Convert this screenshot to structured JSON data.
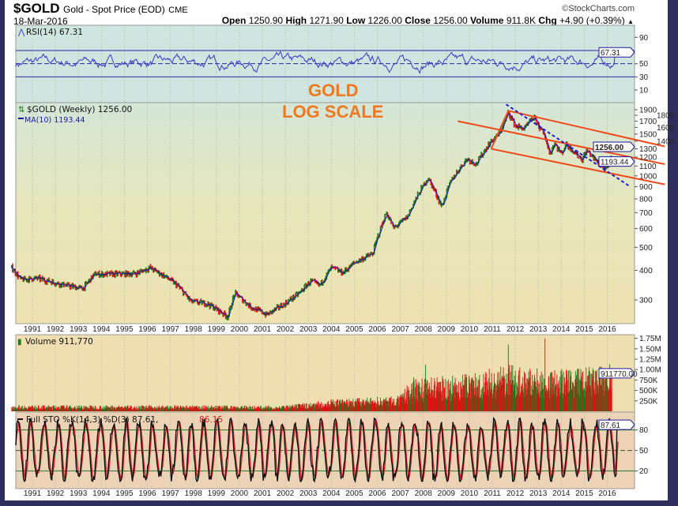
{
  "header": {
    "symbol": "$GOLD",
    "name": "Gold - Spot Price (EOD)",
    "exchange": "CME",
    "date": "18-Mar-2016",
    "watermark": "©StockCharts.com",
    "open_label": "Open",
    "open": "1250.90",
    "high_label": "High",
    "high": "1271.90",
    "low_label": "Low",
    "low": "1226.00",
    "close_label": "Close",
    "close": "1256.00",
    "volume_label": "Volume",
    "volume": "911.8K",
    "chg_label": "Chg",
    "chg": "+4.90 (+0.39%)",
    "chg_icon": "up-triangle-icon"
  },
  "annotation": {
    "line1": "GOLD",
    "line2": "LOG SCALE",
    "color": "#f07820"
  },
  "colors": {
    "up": "#1a7a1a",
    "down": "#e01010",
    "ma": "#1a1aa0",
    "trend": "#f04a1a",
    "dashed": "#2020d0",
    "rsi": "#3a3ac8",
    "sto_k": "#111111",
    "sto_d": "#d02020"
  },
  "chart_data": [
    {
      "type": "line",
      "title": "RSI(14) 67.31",
      "panel": "rsi",
      "ylim": [
        0,
        100
      ],
      "yticks": [
        "90",
        "50",
        "30",
        "10"
      ],
      "reference_lines": [
        70,
        50,
        30
      ],
      "last_value": 67.31,
      "last_value_label": "67.31"
    },
    {
      "type": "bar",
      "title": "$GOLD (Weekly) 1256.00",
      "ma_label": "MA(10) 1193.44",
      "panel": "price",
      "scale": "log",
      "ylim": [
        250,
        2000
      ],
      "yticks": [
        "1900",
        "1800",
        "1700",
        "1600",
        "1500",
        "1400",
        "1300",
        "1200",
        "1100",
        "1000",
        "900",
        "800",
        "700",
        "600",
        "500",
        "400",
        "300"
      ],
      "last_price_label": "1256.00",
      "ma_value_label": "1193.44",
      "xticks": [
        "1991",
        "1992",
        "1993",
        "1994",
        "1995",
        "1996",
        "1997",
        "1998",
        "1999",
        "2000",
        "2001",
        "2002",
        "2003",
        "2004",
        "2005",
        "2006",
        "2007",
        "2008",
        "2009",
        "2010",
        "2011",
        "2012",
        "2013",
        "2014",
        "2015",
        "2016"
      ],
      "price_keypoints": [
        [
          1990.1,
          410
        ],
        [
          1990.5,
          365
        ],
        [
          1991.2,
          370
        ],
        [
          1992.5,
          345
        ],
        [
          1993.2,
          335
        ],
        [
          1993.7,
          385
        ],
        [
          1994.5,
          385
        ],
        [
          1995.5,
          388
        ],
        [
          1996.1,
          410
        ],
        [
          1996.8,
          375
        ],
        [
          1997.3,
          345
        ],
        [
          1997.9,
          295
        ],
        [
          1998.6,
          290
        ],
        [
          1999.5,
          255
        ],
        [
          1999.8,
          320
        ],
        [
          2000.5,
          280
        ],
        [
          2001.2,
          260
        ],
        [
          2002.0,
          290
        ],
        [
          2002.6,
          320
        ],
        [
          2003.1,
          360
        ],
        [
          2003.5,
          345
        ],
        [
          2004.0,
          410
        ],
        [
          2004.5,
          390
        ],
        [
          2005.0,
          430
        ],
        [
          2005.8,
          470
        ],
        [
          2006.4,
          700
        ],
        [
          2006.7,
          600
        ],
        [
          2007.3,
          670
        ],
        [
          2008.2,
          980
        ],
        [
          2008.8,
          740
        ],
        [
          2009.2,
          950
        ],
        [
          2009.9,
          1180
        ],
        [
          2010.3,
          1120
        ],
        [
          2010.9,
          1380
        ],
        [
          2011.3,
          1500
        ],
        [
          2011.7,
          1850
        ],
        [
          2012.0,
          1620
        ],
        [
          2012.4,
          1580
        ],
        [
          2012.8,
          1760
        ],
        [
          2013.3,
          1450
        ],
        [
          2013.5,
          1230
        ],
        [
          2013.7,
          1380
        ],
        [
          2014.0,
          1230
        ],
        [
          2014.2,
          1360
        ],
        [
          2014.9,
          1170
        ],
        [
          2015.1,
          1280
        ],
        [
          2015.5,
          1160
        ],
        [
          2015.9,
          1060
        ],
        [
          2016.05,
          1100
        ],
        [
          2016.2,
          1256
        ]
      ],
      "trendlines": [
        {
          "name": "upper-channel",
          "from": [
            2011.7,
            1880
          ],
          "to": [
            2018.5,
            1330
          ]
        },
        {
          "name": "middle-channel",
          "from": [
            2009.5,
            1700
          ],
          "to": [
            2018.5,
            1120
          ]
        },
        {
          "name": "lower-channel",
          "from": [
            2010.95,
            1300
          ],
          "to": [
            2018.5,
            920
          ]
        },
        {
          "name": "breakout-leg",
          "from": [
            2010.95,
            1300
          ],
          "to": [
            2011.7,
            1880
          ]
        }
      ],
      "dashed_trendline": {
        "from": [
          2011.6,
          2000
        ],
        "to": [
          2017.0,
          900
        ]
      }
    },
    {
      "type": "bar",
      "title": "Volume 911,770",
      "panel": "volume",
      "ylim": [
        0,
        1750000
      ],
      "yticks": [
        "1.75M",
        "1.50M",
        "1.25M",
        "1.00M",
        "750K",
        "500K",
        "250K"
      ],
      "last_value_label": "911770.00",
      "volume_keypoints": [
        [
          1990.1,
          120000
        ],
        [
          2002.0,
          110000
        ],
        [
          2004.0,
          230000
        ],
        [
          2007.0,
          300000
        ],
        [
          2007.5,
          650000
        ],
        [
          2009.5,
          700000
        ],
        [
          2011.7,
          900000
        ],
        [
          2013.5,
          800000
        ],
        [
          2016.2,
          900000
        ]
      ],
      "spikes": [
        [
          2008.1,
          1120000
        ],
        [
          2011.7,
          1600000
        ],
        [
          2013.3,
          1750000
        ],
        [
          2016.1,
          1130000
        ]
      ]
    },
    {
      "type": "line",
      "title": "Full STO %K(14,3) %D(3) 87.61,",
      "d_value_label": "86.15",
      "panel": "stochastic",
      "ylim": [
        0,
        100
      ],
      "yticks": [
        "80",
        "50",
        "20"
      ],
      "reference_lines": [
        80,
        50,
        20
      ],
      "last_k": 87.61,
      "last_d": 86.15,
      "last_value_label": "87.61"
    }
  ]
}
